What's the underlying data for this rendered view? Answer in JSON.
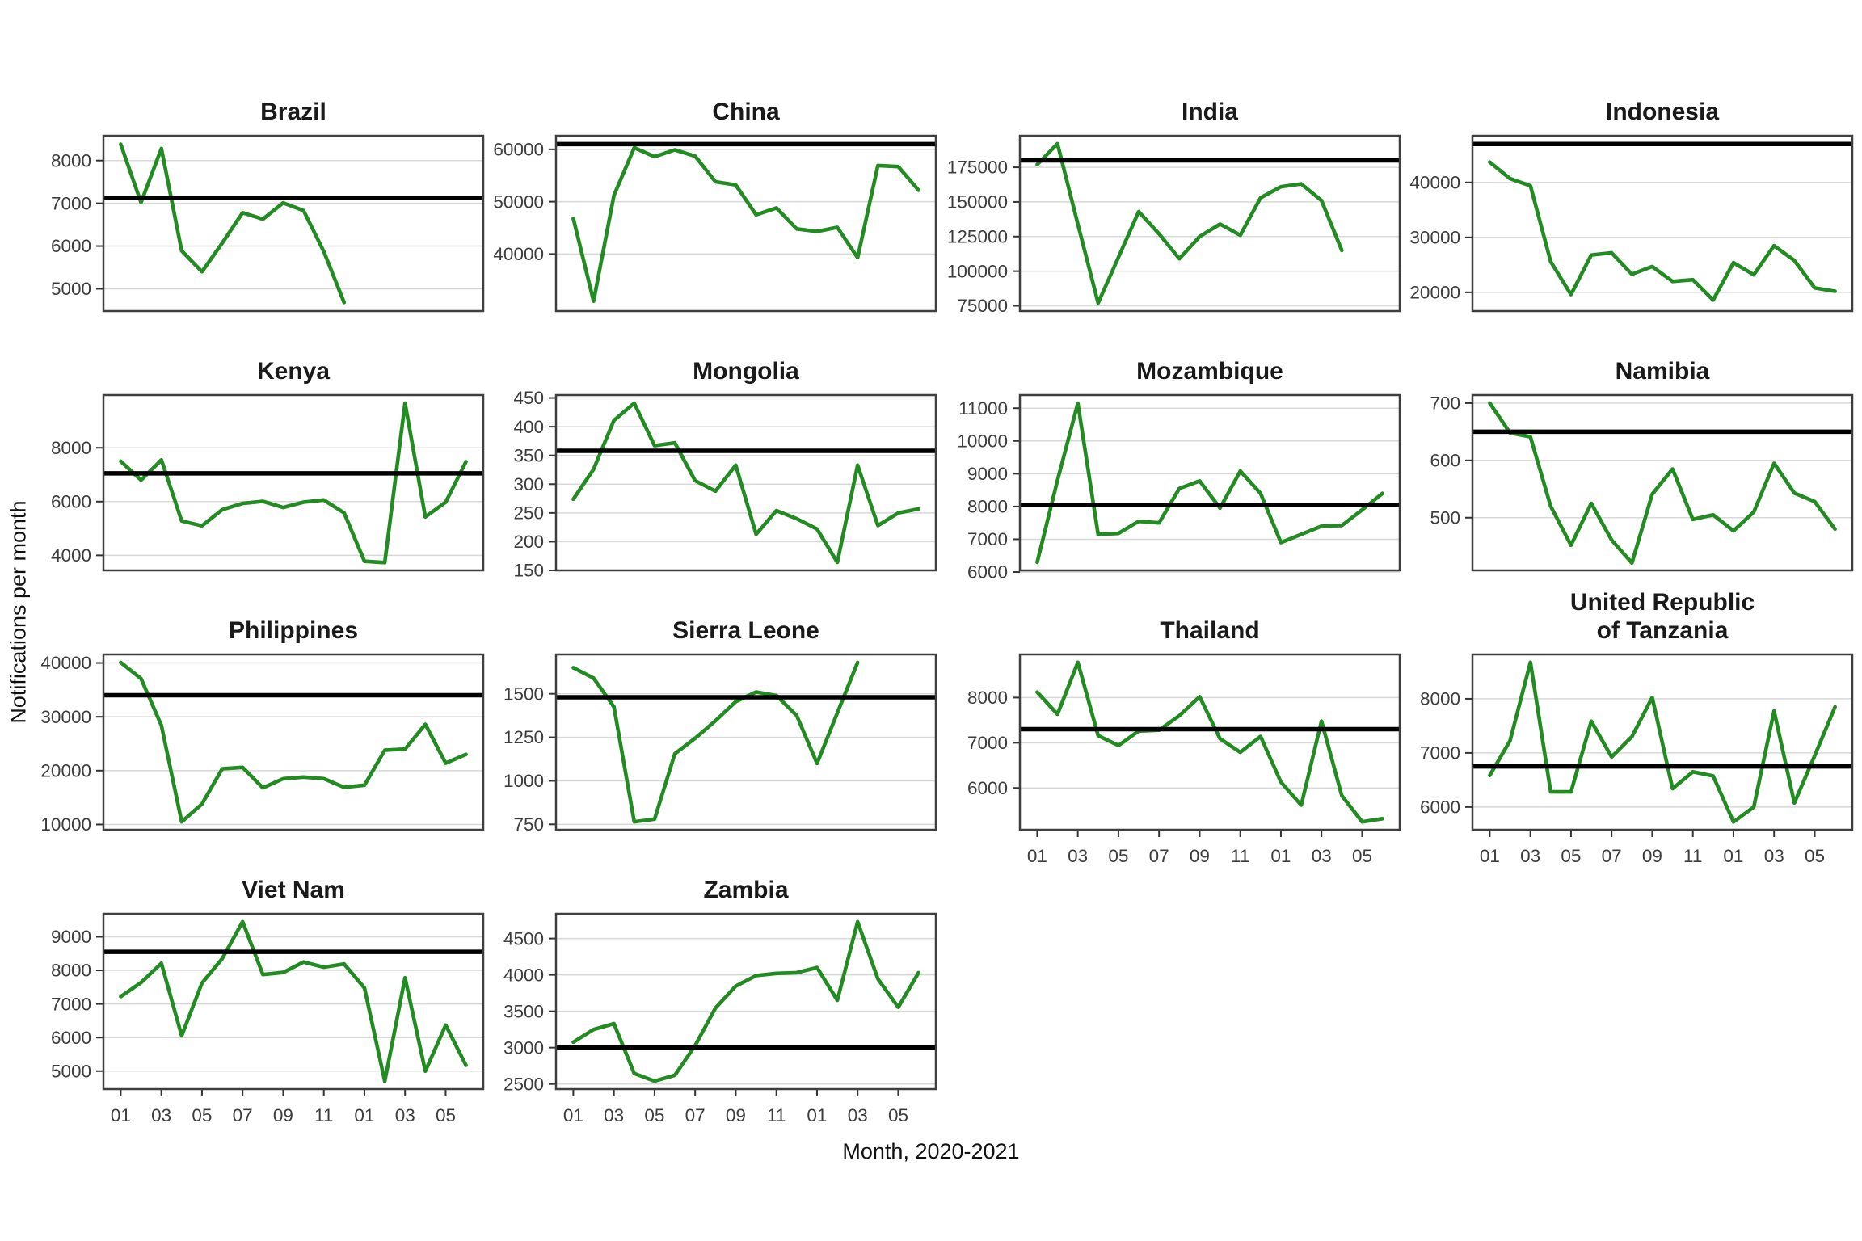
{
  "figure": {
    "ylabel": "Notifications per month",
    "xlabel": "Month, 2020-2021",
    "series_color": "#228B22",
    "ref_line_color": "#000000",
    "grid_color": "#d8d8d8",
    "border_color": "#3f3f3f",
    "months": [
      "01",
      "02",
      "03",
      "04",
      "05",
      "06",
      "07",
      "08",
      "09",
      "10",
      "11",
      "12",
      "01",
      "02",
      "03",
      "04",
      "05",
      "06"
    ],
    "x_tick_labels": [
      "01",
      "03",
      "05",
      "07",
      "09",
      "11",
      "01",
      "03",
      "05"
    ],
    "x_tick_indices": [
      0,
      2,
      4,
      6,
      8,
      10,
      12,
      14,
      16
    ]
  },
  "chart_data": [
    {
      "type": "line",
      "title": "Brazil",
      "slug": "brazil",
      "col": 0,
      "row": 0,
      "show_xaxis": false,
      "ref_line": 7120,
      "yticks": [
        5000,
        6000,
        7000,
        8000
      ],
      "ylim": [
        4480,
        8580
      ],
      "values": [
        8380,
        7020,
        8280,
        5890,
        5400,
        6070,
        6780,
        6630,
        7010,
        6830,
        5870,
        4680
      ]
    },
    {
      "type": "line",
      "title": "China",
      "slug": "china",
      "col": 1,
      "row": 0,
      "show_xaxis": false,
      "ref_line": 61000,
      "yticks": [
        40000,
        50000,
        60000
      ],
      "ylim": [
        29100,
        62600
      ],
      "values": [
        46800,
        31000,
        51200,
        60300,
        58600,
        59900,
        58700,
        53800,
        53200,
        47500,
        48800,
        44800,
        44300,
        45100,
        39300,
        56900,
        56700,
        52200
      ]
    },
    {
      "type": "line",
      "title": "India",
      "slug": "india",
      "col": 2,
      "row": 0,
      "show_xaxis": false,
      "ref_line": 180000,
      "yticks": [
        75000,
        100000,
        125000,
        150000,
        175000
      ],
      "ylim": [
        71200,
        197800
      ],
      "values": [
        177000,
        192000,
        134000,
        77000,
        110000,
        143000,
        127000,
        109000,
        125000,
        134000,
        126000,
        153000,
        161000,
        163000,
        151000,
        115000
      ]
    },
    {
      "type": "line",
      "title": "Indonesia",
      "slug": "indonesia",
      "col": 3,
      "row": 0,
      "show_xaxis": false,
      "ref_line": 47000,
      "yticks": [
        20000,
        30000,
        40000
      ],
      "ylim": [
        16600,
        48500
      ],
      "values": [
        43700,
        40700,
        39400,
        25600,
        19600,
        26800,
        27200,
        23300,
        24700,
        22000,
        22300,
        18600,
        25400,
        23200,
        28500,
        25800,
        20800,
        20200
      ]
    },
    {
      "type": "line",
      "title": "Kenya",
      "slug": "kenya",
      "col": 0,
      "row": 1,
      "show_xaxis": false,
      "ref_line": 7050,
      "yticks": [
        4000,
        6000,
        8000
      ],
      "ylim": [
        3440,
        9960
      ],
      "values": [
        7500,
        6800,
        7550,
        5280,
        5100,
        5700,
        5930,
        6010,
        5780,
        5980,
        6060,
        5580,
        3780,
        3730,
        9660,
        5430,
        5980,
        7480
      ]
    },
    {
      "type": "line",
      "title": "Mongolia",
      "slug": "mongolia",
      "col": 1,
      "row": 1,
      "show_xaxis": false,
      "ref_line": 358,
      "yticks": [
        150,
        200,
        250,
        300,
        350,
        400,
        450
      ],
      "ylim": [
        150,
        455
      ],
      "values": [
        274,
        326,
        411,
        441,
        367,
        372,
        306,
        288,
        333,
        213,
        254,
        240,
        222,
        164,
        333,
        228,
        250,
        257
      ]
    },
    {
      "type": "line",
      "title": "Mozambique",
      "slug": "mozambique",
      "col": 2,
      "row": 1,
      "show_xaxis": false,
      "ref_line": 8050,
      "yticks": [
        6000,
        7000,
        8000,
        9000,
        10000,
        11000
      ],
      "ylim": [
        6050,
        11400
      ],
      "values": [
        6300,
        8800,
        11150,
        7150,
        7180,
        7550,
        7500,
        8550,
        8780,
        7950,
        9080,
        8400,
        6900,
        7150,
        7400,
        7420,
        7900,
        8400
      ]
    },
    {
      "type": "line",
      "title": "Namibia",
      "slug": "namibia",
      "col": 3,
      "row": 1,
      "show_xaxis": false,
      "ref_line": 650,
      "yticks": [
        500,
        600,
        700
      ],
      "ylim": [
        408,
        714
      ],
      "values": [
        700,
        648,
        641,
        520,
        452,
        525,
        461,
        421,
        541,
        585,
        497,
        505,
        477,
        510,
        595,
        543,
        528,
        480
      ]
    },
    {
      "type": "line",
      "title": "Philippines",
      "slug": "philippines",
      "col": 0,
      "row": 2,
      "show_xaxis": false,
      "ref_line": 34000,
      "yticks": [
        10000,
        20000,
        30000,
        40000
      ],
      "ylim": [
        9020,
        41580
      ],
      "values": [
        40100,
        37100,
        28400,
        10500,
        13800,
        20350,
        20600,
        16800,
        18500,
        18800,
        18500,
        16900,
        17300,
        23800,
        24000,
        28600,
        21400,
        23000
      ]
    },
    {
      "type": "line",
      "title": "Sierra Leone",
      "slug": "sierra-leone",
      "col": 1,
      "row": 2,
      "show_xaxis": false,
      "ref_line": 1480,
      "yticks": [
        750,
        1000,
        1250,
        1500
      ],
      "ylim": [
        719,
        1726
      ],
      "values": [
        1650,
        1590,
        1425,
        765,
        780,
        1155,
        1245,
        1345,
        1455,
        1510,
        1490,
        1375,
        1100,
        1390,
        1680
      ]
    },
    {
      "type": "line",
      "title": "Thailand",
      "slug": "thailand",
      "col": 2,
      "row": 2,
      "show_xaxis": true,
      "ref_line": 7300,
      "yticks": [
        6000,
        7000,
        8000
      ],
      "ylim": [
        5075,
        8955
      ],
      "values": [
        8120,
        7630,
        8780,
        7160,
        6940,
        7260,
        7280,
        7600,
        8020,
        7090,
        6790,
        7140,
        6130,
        5620,
        7480,
        5830,
        5250,
        5320
      ]
    },
    {
      "type": "line",
      "title": "United Republic\nof Tanzania",
      "slug": "united-republic-of-tanzania",
      "col": 3,
      "row": 2,
      "show_xaxis": true,
      "ref_line": 6750,
      "yticks": [
        6000,
        7000,
        8000
      ],
      "ylim": [
        5580,
        8820
      ],
      "values": [
        6585,
        7225,
        8675,
        6280,
        6280,
        7585,
        6925,
        7300,
        8025,
        6340,
        6650,
        6575,
        5725,
        6000,
        7775,
        6075,
        6950,
        7850
      ]
    },
    {
      "type": "line",
      "title": "Viet Nam",
      "slug": "viet-nam",
      "col": 0,
      "row": 3,
      "show_xaxis": true,
      "ref_line": 8550,
      "yticks": [
        5000,
        6000,
        7000,
        8000,
        9000
      ],
      "ylim": [
        4465,
        9685
      ],
      "values": [
        7220,
        7635,
        8210,
        6055,
        7620,
        8350,
        9450,
        7875,
        7935,
        8250,
        8095,
        8190,
        7475,
        4700,
        7780,
        5000,
        6370,
        5175
      ]
    },
    {
      "type": "line",
      "title": "Zambia",
      "slug": "zambia",
      "col": 1,
      "row": 3,
      "show_xaxis": true,
      "ref_line": 3000,
      "yticks": [
        2500,
        3000,
        3500,
        4000,
        4500
      ],
      "ylim": [
        2430,
        4840
      ],
      "values": [
        3075,
        3250,
        3330,
        2645,
        2540,
        2620,
        3030,
        3545,
        3845,
        3990,
        4020,
        4030,
        4100,
        3650,
        4730,
        3945,
        3555,
        4030
      ]
    }
  ]
}
